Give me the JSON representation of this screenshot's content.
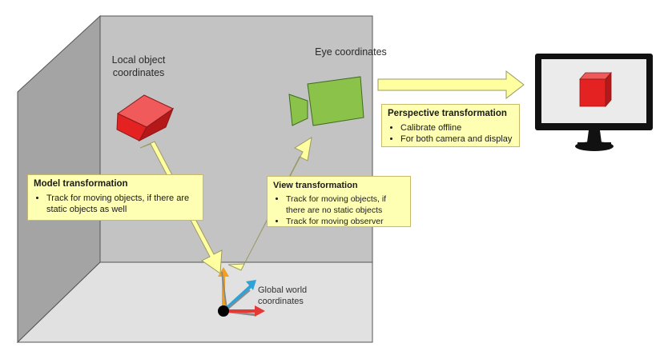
{
  "labels": {
    "local_object": "Local object coordinates",
    "eye": "Eye coordinates",
    "global_world": "Global world coordinates"
  },
  "model_transformation": {
    "title": "Model transformation",
    "items": [
      "Track for moving objects, if there are static objects as well"
    ]
  },
  "view_transformation": {
    "title": "View transformation",
    "items": [
      "Track for moving objects, if there are no static objects",
      "Track for moving observer"
    ]
  },
  "perspective_transformation": {
    "title": "Perspective transformation",
    "items": [
      "Calibrate offline",
      "For both camera and display"
    ]
  },
  "colors": {
    "cube_red": "#e52222",
    "camera_green": "#8bc34a",
    "arrow_fill": "#ffffa0",
    "box_fill": "#ffffb3",
    "wall_back": "#c3c3c3",
    "wall_left": "#a4a4a4",
    "floor": "#e1e1e1",
    "axis_red": "#e53935",
    "axis_orange": "#f0a020",
    "axis_blue": "#2fa3d6",
    "axis_gray": "#8a8a8a"
  }
}
